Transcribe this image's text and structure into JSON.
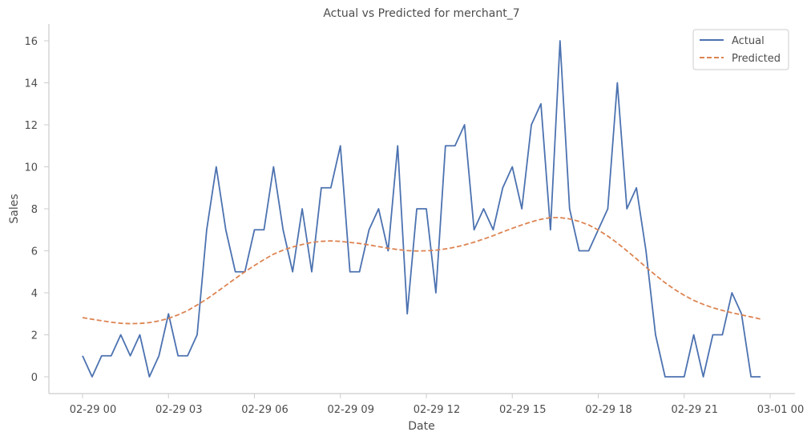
{
  "chart_data": {
    "type": "line",
    "title": "Actual vs Predicted for merchant_7",
    "xlabel": "Date",
    "ylabel": "Sales",
    "x_start": "02-29 00:00",
    "x_step_minutes": 20,
    "x_ticks": [
      "02-29 00",
      "02-29 03",
      "02-29 06",
      "02-29 09",
      "02-29 12",
      "02-29 15",
      "02-29 18",
      "02-29 21",
      "03-01 00"
    ],
    "y_ticks": [
      "0",
      "2",
      "4",
      "6",
      "8",
      "10",
      "12",
      "14",
      "16"
    ],
    "ylim": [
      0,
      16
    ],
    "grid": false,
    "legend": "top-right",
    "series": [
      {
        "name": "Actual",
        "color": "#4c72b0",
        "style": "solid",
        "values": [
          1,
          0,
          1,
          1,
          2,
          1,
          2,
          0,
          1,
          3,
          1,
          1,
          2,
          7,
          10,
          7,
          5,
          5,
          7,
          7,
          10,
          7,
          5,
          8,
          5,
          9,
          9,
          11,
          5,
          5,
          7,
          8,
          6,
          11,
          3,
          8,
          8,
          4,
          11,
          11,
          12,
          7,
          8,
          7,
          9,
          10,
          8,
          12,
          13,
          7,
          16,
          8,
          6,
          6,
          7,
          8,
          14,
          8,
          9,
          6,
          2,
          0,
          0,
          0,
          2,
          0,
          2,
          2,
          4,
          3,
          0,
          0
        ]
      },
      {
        "name": "Predicted",
        "color": "#dd8452",
        "style": "dashed",
        "values": [
          2.82,
          2.74,
          2.67,
          2.6,
          2.55,
          2.53,
          2.54,
          2.58,
          2.66,
          2.78,
          2.95,
          3.15,
          3.42,
          3.7,
          4.02,
          4.35,
          4.68,
          5.0,
          5.3,
          5.58,
          5.84,
          6.03,
          6.18,
          6.3,
          6.4,
          6.45,
          6.47,
          6.45,
          6.4,
          6.35,
          6.28,
          6.2,
          6.12,
          6.06,
          6.01,
          5.99,
          6.0,
          6.03,
          6.09,
          6.17,
          6.28,
          6.41,
          6.56,
          6.72,
          6.9,
          7.07,
          7.23,
          7.38,
          7.5,
          7.58,
          7.58,
          7.52,
          7.4,
          7.23,
          6.99,
          6.7,
          6.37,
          6.0,
          5.62,
          5.22,
          4.84,
          4.48,
          4.16,
          3.88,
          3.64,
          3.45,
          3.29,
          3.16,
          3.05,
          2.95,
          2.85,
          2.75
        ]
      }
    ]
  }
}
